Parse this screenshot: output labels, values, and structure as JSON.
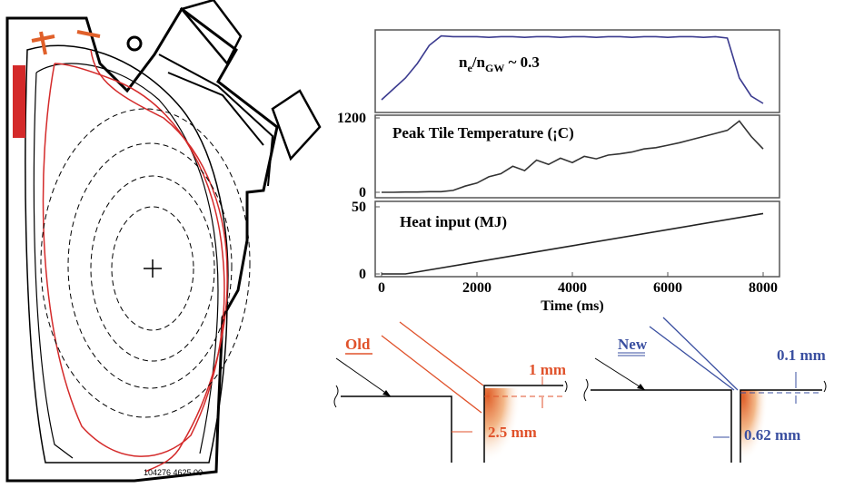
{
  "chart_data": [
    {
      "type": "line",
      "annotation_parts": [
        "n",
        "e",
        "/n",
        "GW",
        " ~ 0.3"
      ],
      "x": [
        0,
        250,
        500,
        750,
        1000,
        1250,
        1500,
        1750,
        2000,
        2250,
        2500,
        2750,
        3000,
        3250,
        3500,
        3750,
        4000,
        4250,
        4500,
        4750,
        5000,
        5250,
        5500,
        5750,
        6000,
        6250,
        6500,
        6750,
        7000,
        7250,
        7500,
        7750,
        8000
      ],
      "series": [
        {
          "color": "#3b3b8f",
          "values": [
            0.1,
            0.25,
            0.4,
            0.6,
            0.85,
            0.98,
            0.97,
            0.97,
            0.97,
            0.96,
            0.97,
            0.97,
            0.96,
            0.97,
            0.97,
            0.96,
            0.97,
            0.97,
            0.96,
            0.97,
            0.97,
            0.96,
            0.97,
            0.97,
            0.96,
            0.97,
            0.97,
            0.96,
            0.97,
            0.95,
            0.4,
            0.15,
            0.05
          ]
        }
      ],
      "xlim": [
        0,
        8000
      ],
      "ylim": [
        0,
        1
      ]
    },
    {
      "type": "line",
      "annotation": "Peak Tile Temperature (¡C)",
      "x": [
        0,
        250,
        500,
        750,
        1000,
        1250,
        1500,
        1750,
        2000,
        2250,
        2500,
        2750,
        3000,
        3250,
        3500,
        3750,
        4000,
        4250,
        4500,
        4750,
        5000,
        5250,
        5500,
        5750,
        6000,
        6250,
        6500,
        6750,
        7000,
        7250,
        7500,
        7750,
        8000
      ],
      "series": [
        {
          "color": "#333333",
          "values": [
            0,
            0,
            5,
            5,
            10,
            10,
            30,
            100,
            150,
            250,
            300,
            420,
            350,
            520,
            450,
            550,
            480,
            580,
            540,
            600,
            620,
            650,
            700,
            720,
            760,
            800,
            850,
            900,
            950,
            1000,
            1150,
            900,
            700
          ]
        }
      ],
      "xlim": [
        0,
        8000
      ],
      "ylim": [
        0,
        1200
      ],
      "yticks": [
        0,
        1200
      ]
    },
    {
      "type": "line",
      "annotation": "Heat input (MJ)",
      "x": [
        0,
        500,
        2000,
        4000,
        6000,
        8000
      ],
      "series": [
        {
          "color": "#222222",
          "values": [
            0,
            0,
            9,
            21,
            33,
            45
          ]
        }
      ],
      "xlim": [
        0,
        8000
      ],
      "ylim": [
        0,
        50
      ],
      "yticks": [
        0,
        50
      ],
      "xticks": [
        0,
        2000,
        4000,
        6000,
        8000
      ],
      "xlabel": "Time (ms)"
    }
  ],
  "figure": {
    "plasma_label": "104276 4625.00",
    "old": {
      "label": "Old",
      "top_gap": "1 mm",
      "side_gap": "2.5 mm"
    },
    "new": {
      "label": "New",
      "top_gap": "0.1 mm",
      "side_gap": "0.62 mm"
    }
  }
}
